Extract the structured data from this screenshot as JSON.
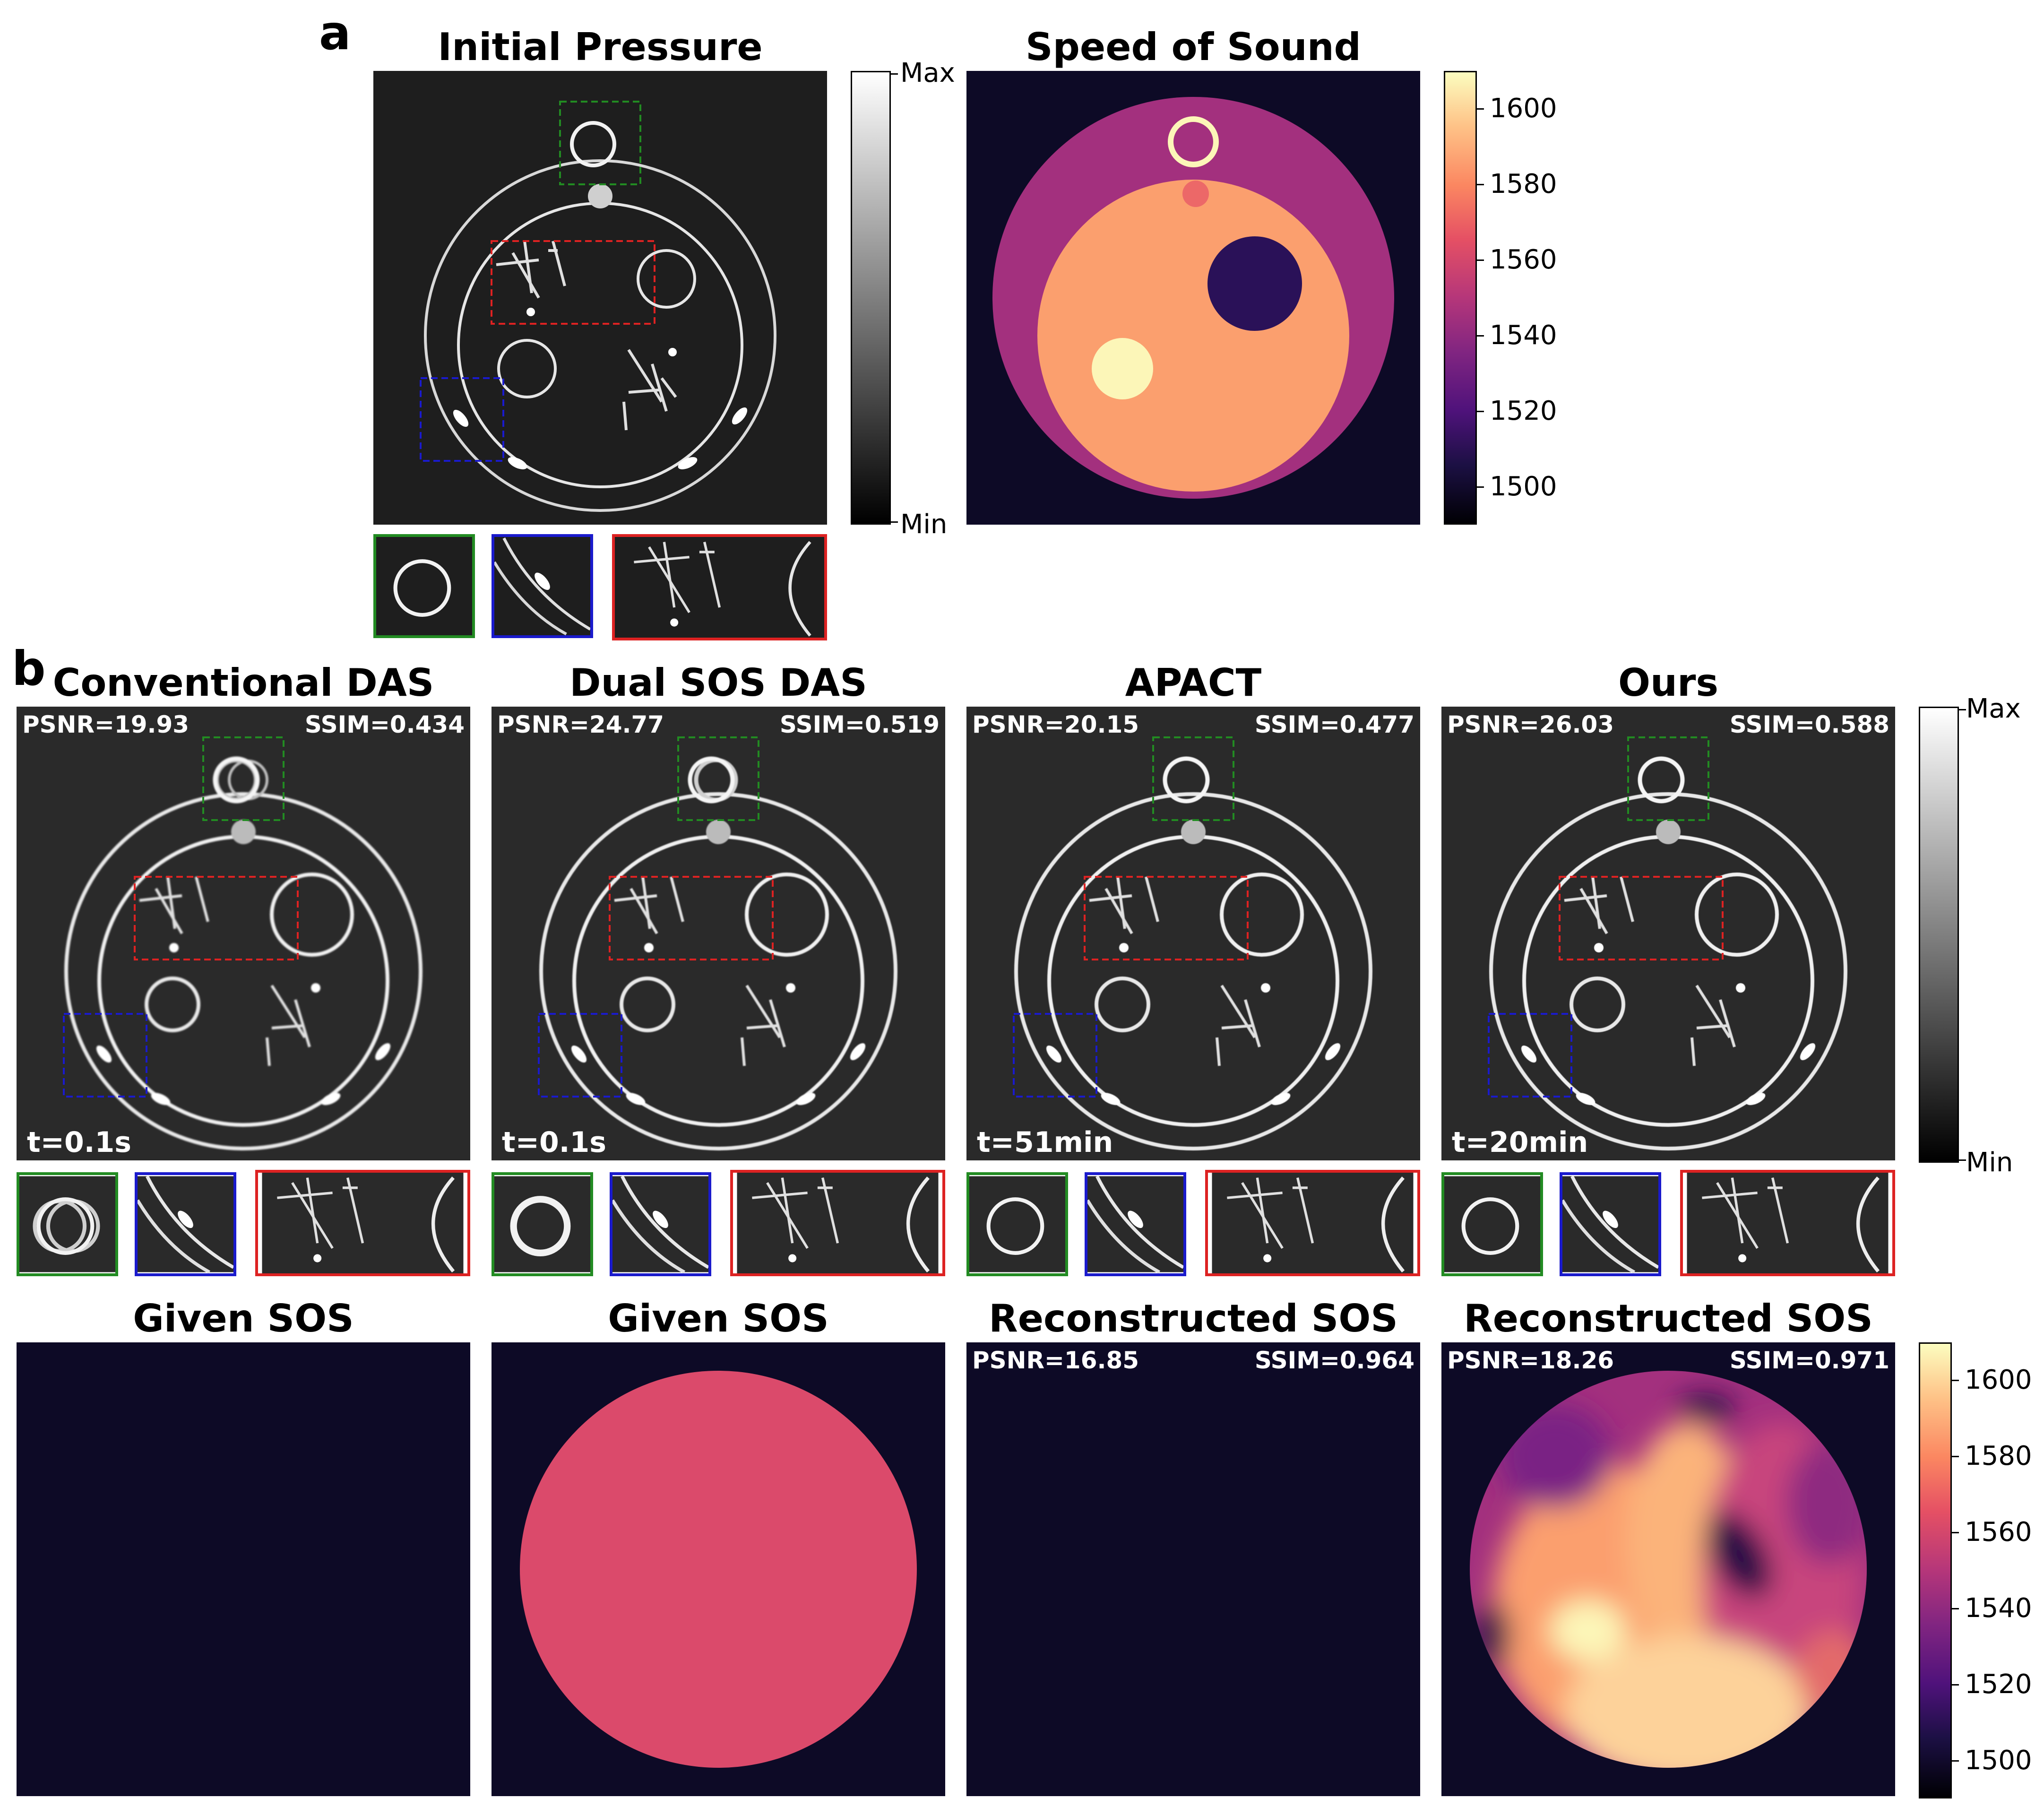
{
  "panels": {
    "a_label": "a",
    "b_label": "b"
  },
  "panel_a": {
    "initial_pressure_title": "Initial Pressure",
    "speed_of_sound_title": "Speed of Sound",
    "gray_colorbar": {
      "max_label": "Max",
      "min_label": "Min"
    },
    "sos_colorbar": {
      "ticks": [
        "1600",
        "1580",
        "1560",
        "1540",
        "1520",
        "1500"
      ],
      "range": [
        1490,
        1610
      ]
    }
  },
  "panel_b": {
    "columns": [
      {
        "title": "Conventional DAS",
        "psnr": "PSNR=19.93",
        "ssim": "SSIM=0.434",
        "time": "t=0.1s"
      },
      {
        "title": "Dual SOS DAS",
        "psnr": "PSNR=24.77",
        "ssim": "SSIM=0.519",
        "time": "t=0.1s"
      },
      {
        "title": "APACT",
        "psnr": "PSNR=20.15",
        "ssim": "SSIM=0.477",
        "time": "t=51min"
      },
      {
        "title": "Ours",
        "psnr": "PSNR=26.03",
        "ssim": "SSIM=0.588",
        "time": "t=20min"
      }
    ],
    "sos_row": [
      {
        "title": "Given SOS",
        "psnr": "",
        "ssim": ""
      },
      {
        "title": "Given SOS",
        "psnr": "",
        "ssim": ""
      },
      {
        "title": "Reconstructed SOS",
        "psnr": "PSNR=16.85",
        "ssim": "SSIM=0.964"
      },
      {
        "title": "Reconstructed SOS",
        "psnr": "PSNR=18.26",
        "ssim": "SSIM=0.971"
      }
    ],
    "gray_colorbar": {
      "max_label": "Max",
      "min_label": "Min"
    },
    "sos_colorbar": {
      "ticks": [
        "1600",
        "1580",
        "1560",
        "1540",
        "1520",
        "1500"
      ],
      "range": [
        1490,
        1610
      ]
    }
  },
  "colors": {
    "bg_dark": "#0d0a26",
    "sos_purple": "#a3307e",
    "sos_orange": "#fb9f6e",
    "sos_pale": "#fcf6b8",
    "sos_dark_purple": "#2a1158",
    "given_sos_pink": "#db4a6b",
    "zoom_green": "#228b22",
    "zoom_blue": "#1a1acc",
    "zoom_red": "#dd2222"
  }
}
